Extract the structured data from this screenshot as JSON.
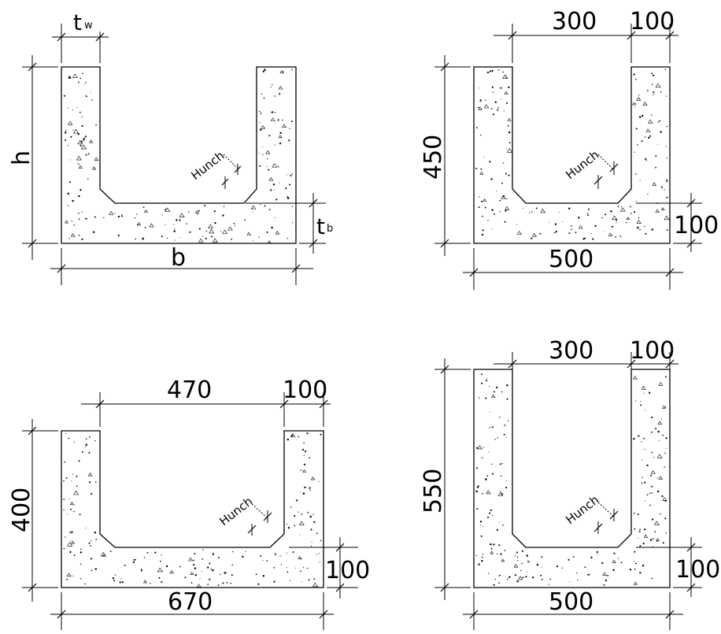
{
  "panel_generic": {
    "tw_label": "t",
    "tw_sub": "w",
    "h_label": "h",
    "b_label": "b",
    "tb_label": "t",
    "tb_sub": "b",
    "hunch_label": "Hunch"
  },
  "panel_a": {
    "inner_width": "300",
    "wall": "100",
    "height": "450",
    "base": "100",
    "width": "500",
    "hunch_label": "Hunch"
  },
  "panel_b": {
    "inner_width": "470",
    "wall": "100",
    "height": "400",
    "base": "100",
    "width": "670",
    "hunch_label": "Hunch"
  },
  "panel_c": {
    "inner_width": "300",
    "wall": "100",
    "height": "550",
    "base": "100",
    "width": "500",
    "hunch_label": "Hunch"
  }
}
